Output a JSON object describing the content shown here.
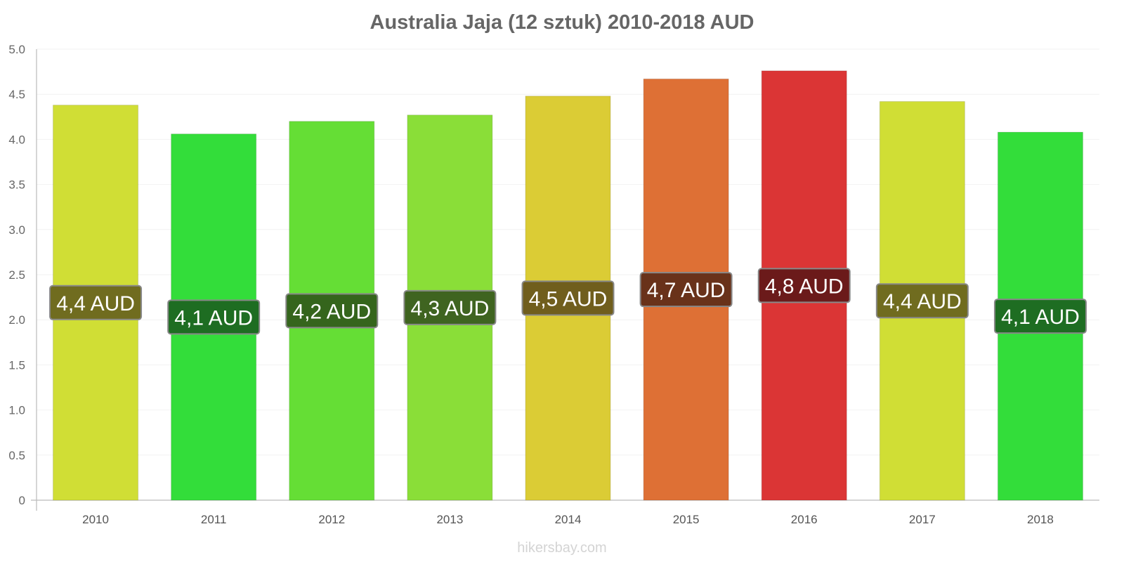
{
  "chart_data": {
    "type": "bar",
    "title": "Australia Jaja (12 sztuk) 2010-2018 AUD",
    "xlabel": "",
    "ylabel": "",
    "ylim": [
      0,
      5
    ],
    "yticks": [
      0,
      0.5,
      1,
      1.5,
      2,
      2.5,
      3,
      3.5,
      4,
      4.5,
      5
    ],
    "ytick_labels": [
      "0",
      "0.5",
      "1.0",
      "1.5",
      "2.0",
      "2.5",
      "3.0",
      "3.5",
      "4.0",
      "4.5",
      "5.0"
    ],
    "categories": [
      "2010",
      "2011",
      "2012",
      "2013",
      "2014",
      "2015",
      "2016",
      "2017",
      "2018"
    ],
    "values": [
      4.38,
      4.06,
      4.2,
      4.27,
      4.48,
      4.67,
      4.76,
      4.42,
      4.08
    ],
    "value_labels": [
      "4,4 AUD",
      "4,1 AUD",
      "4,2 AUD",
      "4,3 AUD",
      "4,5 AUD",
      "4,7 AUD",
      "4,8 AUD",
      "4,4 AUD",
      "4,1 AUD"
    ],
    "bar_colors": [
      "#d0de35",
      "#33dd3a",
      "#65de35",
      "#8ade38",
      "#dbcc35",
      "#de7035",
      "#db3535",
      "#d0de35",
      "#33dd3a"
    ],
    "label_box_colors": [
      "#706c1f",
      "#1e6d22",
      "#35651c",
      "#3f6420",
      "#705e1d",
      "#69321a",
      "#6b1a1a",
      "#706c1f",
      "#1e6d22"
    ],
    "grid": true,
    "legend": "none"
  },
  "watermark": "hikersbay.com"
}
